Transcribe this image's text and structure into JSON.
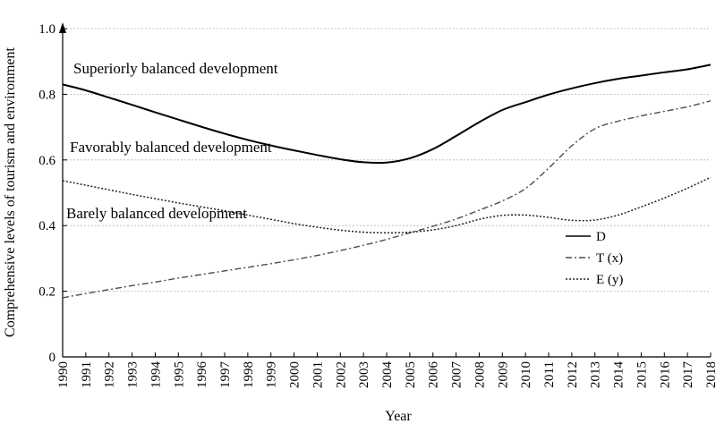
{
  "chart_data": {
    "type": "line",
    "title": "",
    "xlabel": "Year",
    "ylabel": "Comprehensive levels of tourism and environment",
    "ylim": [
      0,
      1.0
    ],
    "yticks": [
      "0",
      "0.2",
      "0.4",
      "0.6",
      "0.8",
      "1.0"
    ],
    "categories": [
      "1990",
      "1991",
      "1992",
      "1993",
      "1994",
      "1995",
      "1996",
      "1997",
      "1998",
      "1999",
      "2000",
      "2001",
      "2002",
      "2003",
      "2004",
      "2005",
      "2006",
      "2007",
      "2008",
      "2009",
      "2010",
      "2011",
      "2012",
      "2013",
      "2014",
      "2015",
      "2016",
      "2017",
      "2018"
    ],
    "grid": "horizontal dotted",
    "legend_position": "right",
    "series": [
      {
        "name": "D",
        "color": "#000000",
        "style": "solid",
        "values": [
          0.83,
          0.812,
          0.79,
          0.768,
          0.745,
          0.723,
          0.701,
          0.68,
          0.661,
          0.644,
          0.629,
          0.615,
          0.602,
          0.593,
          0.592,
          0.605,
          0.633,
          0.673,
          0.715,
          0.752,
          0.776,
          0.799,
          0.818,
          0.834,
          0.847,
          0.857,
          0.867,
          0.876,
          0.89
        ]
      },
      {
        "name": "T (x)",
        "color": "#5a4a35",
        "style": "dashdot",
        "values": [
          0.18,
          0.193,
          0.205,
          0.217,
          0.228,
          0.24,
          0.251,
          0.262,
          0.273,
          0.284,
          0.296,
          0.309,
          0.324,
          0.34,
          0.358,
          0.378,
          0.398,
          0.42,
          0.447,
          0.475,
          0.513,
          0.575,
          0.643,
          0.695,
          0.718,
          0.734,
          0.748,
          0.762,
          0.78
        ]
      },
      {
        "name": "E (y)",
        "color": "#222222",
        "style": "dotted",
        "values": [
          0.537,
          0.523,
          0.509,
          0.495,
          0.482,
          0.469,
          0.457,
          0.445,
          0.432,
          0.419,
          0.406,
          0.395,
          0.386,
          0.38,
          0.378,
          0.38,
          0.387,
          0.4,
          0.419,
          0.431,
          0.432,
          0.425,
          0.416,
          0.417,
          0.432,
          0.457,
          0.484,
          0.514,
          0.547
        ]
      }
    ],
    "annotations": [
      {
        "text": "Superiorly balanced development",
        "y": 0.87
      },
      {
        "text": "Favorably balanced development",
        "y": 0.63
      },
      {
        "text": "Barely balanced development",
        "y": 0.42
      }
    ]
  }
}
